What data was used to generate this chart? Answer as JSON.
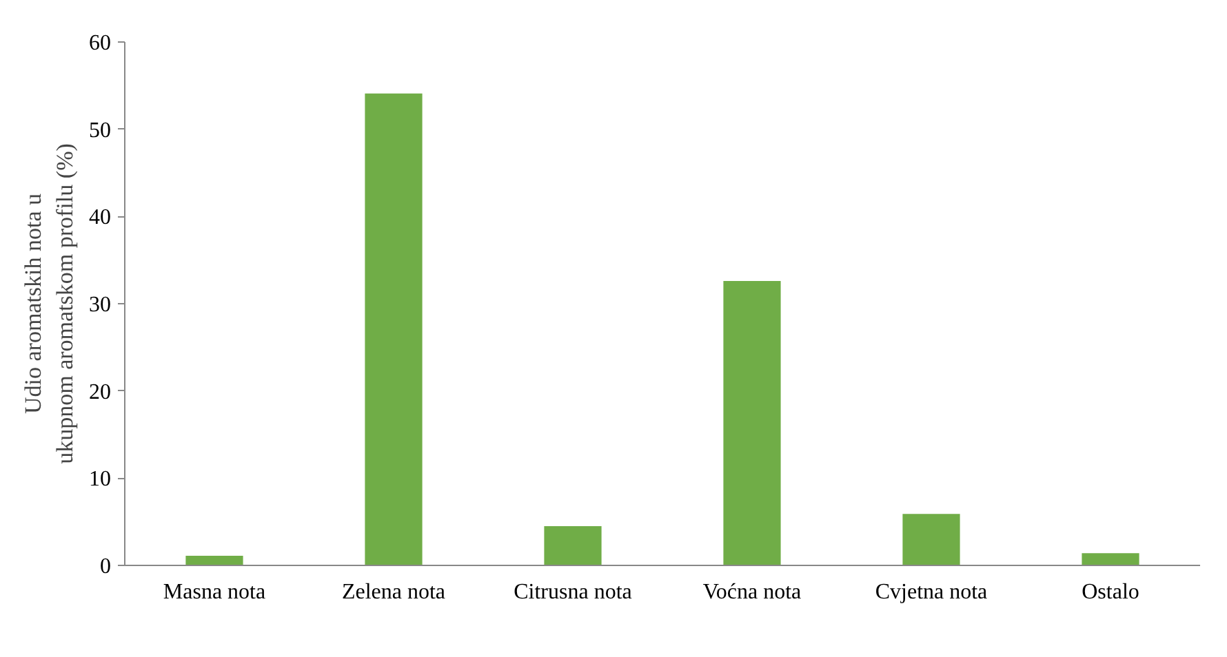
{
  "chart_data": {
    "type": "bar",
    "ylabel": "Udio aromatskih nota u ukupnom aromatskom profilu (%)",
    "categories": [
      "Masna nota",
      "Zelena nota",
      "Citrusna nota",
      "Voćna nota",
      "Cvjetna nota",
      "Ostalo"
    ],
    "values": [
      1.1,
      54.1,
      4.5,
      32.6,
      5.9,
      1.4
    ],
    "color": "#70ad47",
    "ylim": [
      0,
      60
    ],
    "yticks": [
      0,
      10,
      20,
      30,
      40,
      50,
      60
    ],
    "grid": false
  }
}
